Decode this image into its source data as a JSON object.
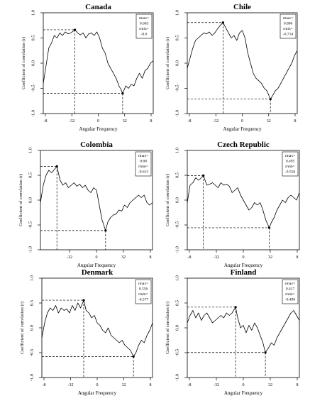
{
  "chart_data": [
    {
      "type": "line",
      "title": "Canada",
      "xlabel": "Angular Frequency",
      "ylabel": "Coefficient of correlation (r)",
      "x_tick_labels": [
        "-8",
        "-32",
        "0",
        "32",
        "8"
      ],
      "y_tick_labels": [
        "-1.0",
        "-0.5",
        "0.0",
        "0.5",
        "1.0"
      ],
      "xlim": [
        -8,
        8
      ],
      "ylim": [
        -1,
        1
      ],
      "legend": {
        "max_label": "rmax=",
        "max_value": "0.663",
        "min_label": "rmin=",
        "min_value": "-0.6"
      },
      "max_point": {
        "x": -3.4,
        "y": 0.663
      },
      "min_point": {
        "x": 3.55,
        "y": -0.6
      },
      "x": [
        -8.0,
        -7.6,
        -7.2,
        -6.8,
        -6.4,
        -6.0,
        -5.6,
        -5.2,
        -4.8,
        -4.4,
        -4.0,
        -3.6,
        -3.4,
        -3.0,
        -2.6,
        -2.2,
        -1.8,
        -1.4,
        -1.0,
        -0.6,
        -0.2,
        0.2,
        0.6,
        1.0,
        1.4,
        1.8,
        2.2,
        2.6,
        3.0,
        3.3,
        3.55,
        4.0,
        4.4,
        4.8,
        5.2,
        5.6,
        6.0,
        6.4,
        6.8,
        7.2,
        7.6,
        8.0
      ],
      "y": [
        -0.4,
        -0.05,
        0.3,
        0.4,
        0.55,
        0.5,
        0.6,
        0.55,
        0.62,
        0.58,
        0.6,
        0.64,
        0.663,
        0.6,
        0.56,
        0.6,
        0.5,
        0.58,
        0.6,
        0.55,
        0.62,
        0.5,
        0.3,
        0.2,
        0.0,
        -0.1,
        -0.2,
        -0.3,
        -0.45,
        -0.52,
        -0.6,
        -0.45,
        -0.5,
        -0.42,
        -0.45,
        -0.3,
        -0.2,
        -0.3,
        -0.15,
        -0.1,
        0.0,
        0.05
      ]
    },
    {
      "type": "line",
      "title": "Chile",
      "xlabel": "Angular Frequency",
      "ylabel": "Coefficient of correlation (r)",
      "x_tick_labels": [
        "-8",
        "-32",
        "0",
        "32",
        "8"
      ],
      "y_tick_labels": [
        "-1.0",
        "-0.5",
        "0.0",
        "0.5",
        "1.0"
      ],
      "xlim": [
        -8,
        8
      ],
      "ylim": [
        -1,
        1
      ],
      "legend": {
        "max_label": "rmax=",
        "max_value": "0.806",
        "min_label": "rmin=",
        "min_value": "-0.714"
      },
      "max_point": {
        "x": -2.8,
        "y": 0.806
      },
      "min_point": {
        "x": 4.1,
        "y": -0.714
      },
      "x": [
        -8.0,
        -7.6,
        -7.2,
        -6.8,
        -6.4,
        -6.0,
        -5.6,
        -5.2,
        -4.8,
        -4.4,
        -4.0,
        -3.6,
        -3.2,
        -2.8,
        -2.4,
        -2.0,
        -1.6,
        -1.2,
        -0.8,
        -0.4,
        0.0,
        0.4,
        0.8,
        1.2,
        1.6,
        2.0,
        2.4,
        2.8,
        3.2,
        3.6,
        4.1,
        4.4,
        4.8,
        5.2,
        5.6,
        6.0,
        6.4,
        6.8,
        7.2,
        7.6,
        8.0
      ],
      "y": [
        -0.1,
        0.1,
        0.3,
        0.45,
        0.5,
        0.55,
        0.6,
        0.58,
        0.62,
        0.55,
        0.6,
        0.68,
        0.75,
        0.806,
        0.7,
        0.6,
        0.5,
        0.55,
        0.45,
        0.6,
        0.65,
        0.5,
        0.2,
        0.0,
        -0.2,
        -0.3,
        -0.35,
        -0.4,
        -0.5,
        -0.55,
        -0.714,
        -0.65,
        -0.55,
        -0.5,
        -0.4,
        -0.3,
        -0.2,
        -0.1,
        0.0,
        0.15,
        0.25
      ]
    },
    {
      "type": "line",
      "title": "Colombia",
      "xlabel": "Angular Frequency",
      "ylabel": "Coefficient of correlation (r)",
      "x_tick_labels": [
        "-32",
        "0",
        "32",
        "8"
      ],
      "y_tick_labels": [
        "-1.0",
        "-0.5",
        "0.0",
        "0.5",
        "1.0"
      ],
      "xlim": [
        -8,
        8
      ],
      "ylim": [
        -1,
        1
      ],
      "legend": {
        "max_label": "rmax=",
        "max_value": "0.68",
        "min_label": "rmin=",
        "min_value": "-0.613"
      },
      "max_point": {
        "x": -5.65,
        "y": 0.68
      },
      "min_point": {
        "x": 1.3,
        "y": -0.613
      },
      "x": [
        -8.0,
        -7.6,
        -7.2,
        -6.8,
        -6.4,
        -6.0,
        -5.65,
        -5.2,
        -4.8,
        -4.4,
        -4.0,
        -3.6,
        -3.2,
        -2.8,
        -2.4,
        -2.0,
        -1.6,
        -1.2,
        -0.8,
        -0.4,
        0.0,
        0.4,
        0.8,
        1.3,
        1.6,
        2.0,
        2.4,
        2.8,
        3.2,
        3.6,
        4.0,
        4.4,
        4.8,
        5.2,
        5.6,
        6.0,
        6.4,
        6.8,
        7.2,
        7.6,
        8.0
      ],
      "y": [
        -0.05,
        0.3,
        0.5,
        0.6,
        0.55,
        0.62,
        0.68,
        0.4,
        0.3,
        0.35,
        0.25,
        0.3,
        0.35,
        0.28,
        0.32,
        0.25,
        0.3,
        0.2,
        0.15,
        0.25,
        0.2,
        -0.1,
        -0.4,
        -0.613,
        -0.45,
        -0.35,
        -0.3,
        -0.28,
        -0.2,
        -0.22,
        -0.1,
        -0.15,
        -0.05,
        0.0,
        0.05,
        0.1,
        0.05,
        0.1,
        -0.05,
        -0.1,
        -0.05
      ]
    },
    {
      "type": "line",
      "title": "Czech Republic",
      "xlabel": "Angular Frequency",
      "ylabel": "Coefficient of correlation (r)",
      "x_tick_labels": [
        "-8",
        "-32",
        "0",
        "32",
        "8"
      ],
      "y_tick_labels": [
        "-1.0",
        "-0.5",
        "0.0",
        "0.5",
        "1.0"
      ],
      "xlim": [
        -8,
        8
      ],
      "ylim": [
        -1,
        1
      ],
      "legend": {
        "max_label": "rmax=",
        "max_value": "0.495",
        "min_label": "rmin=",
        "min_value": "-0.556"
      },
      "max_point": {
        "x": -5.7,
        "y": 0.495
      },
      "min_point": {
        "x": 3.7,
        "y": -0.556
      },
      "x": [
        -8.0,
        -7.6,
        -7.2,
        -6.8,
        -6.4,
        -6.0,
        -5.7,
        -5.2,
        -4.8,
        -4.4,
        -4.0,
        -3.6,
        -3.2,
        -2.8,
        -2.4,
        -2.0,
        -1.6,
        -1.2,
        -0.8,
        -0.4,
        0.0,
        0.4,
        0.8,
        1.2,
        1.6,
        2.0,
        2.4,
        2.8,
        3.2,
        3.7,
        4.0,
        4.4,
        4.8,
        5.2,
        5.6,
        6.0,
        6.4,
        6.8,
        7.2,
        7.6,
        8.0
      ],
      "y": [
        -0.05,
        0.3,
        0.35,
        0.45,
        0.4,
        0.45,
        0.495,
        0.3,
        0.32,
        0.35,
        0.3,
        0.25,
        0.35,
        0.3,
        0.32,
        0.28,
        0.15,
        0.2,
        0.25,
        0.1,
        0.0,
        -0.1,
        -0.2,
        -0.15,
        -0.05,
        -0.1,
        -0.05,
        -0.2,
        -0.4,
        -0.556,
        -0.45,
        -0.35,
        -0.2,
        -0.1,
        0.0,
        -0.05,
        0.05,
        0.1,
        0.05,
        0.0,
        0.15
      ]
    },
    {
      "type": "line",
      "title": "Denmark",
      "xlabel": "Angular Frequency",
      "ylabel": "Coefficient of correlation (r)",
      "x_tick_labels": [
        "-8",
        "-32",
        "0",
        "32",
        "8"
      ],
      "y_tick_labels": [
        "-1.0",
        "-0.5",
        "0.0",
        "0.5",
        "1.0"
      ],
      "xlim": [
        -8,
        8
      ],
      "ylim": [
        -1,
        1
      ],
      "legend": {
        "max_label": "rmax=",
        "max_value": "0.556",
        "min_label": "rmin=",
        "min_value": "-0.577"
      },
      "max_point": {
        "x": -1.95,
        "y": 0.556
      },
      "min_point": {
        "x": 5.25,
        "y": -0.577
      },
      "x": [
        -8.0,
        -7.6,
        -7.2,
        -6.8,
        -6.4,
        -6.0,
        -5.6,
        -5.2,
        -4.8,
        -4.4,
        -4.0,
        -3.6,
        -3.2,
        -2.8,
        -2.4,
        -1.95,
        -1.6,
        -1.2,
        -0.8,
        -0.4,
        0.0,
        0.4,
        0.8,
        1.2,
        1.6,
        2.0,
        2.4,
        2.8,
        3.2,
        3.6,
        4.0,
        4.4,
        4.8,
        5.25,
        5.6,
        6.0,
        6.4,
        6.8,
        7.2,
        7.6,
        8.0
      ],
      "y": [
        -0.2,
        0.1,
        0.3,
        0.4,
        0.35,
        0.45,
        0.3,
        0.4,
        0.35,
        0.38,
        0.3,
        0.45,
        0.35,
        0.5,
        0.4,
        0.556,
        0.35,
        0.3,
        0.2,
        0.25,
        0.1,
        0.05,
        -0.05,
        -0.1,
        0.0,
        -0.15,
        -0.2,
        -0.25,
        -0.3,
        -0.25,
        -0.35,
        -0.4,
        -0.45,
        -0.577,
        -0.5,
        -0.35,
        -0.25,
        -0.3,
        -0.15,
        -0.05,
        0.1
      ]
    },
    {
      "type": "line",
      "title": "Finland",
      "xlabel": "Angular Frequency",
      "ylabel": "Coefficient of correlation (r)",
      "x_tick_labels": [
        "-8",
        "-32",
        "0",
        "32",
        "8"
      ],
      "y_tick_labels": [
        "-1.0",
        "-0.5",
        "0.0",
        "0.5",
        "1.0"
      ],
      "xlim": [
        -8,
        8
      ],
      "ylim": [
        -1,
        1
      ],
      "legend": {
        "max_label": "rmax=",
        "max_value": "0.417",
        "min_label": "rmin=",
        "min_value": "-0.496"
      },
      "max_point": {
        "x": -1.1,
        "y": 0.417
      },
      "min_point": {
        "x": 3.15,
        "y": -0.496
      },
      "x": [
        -8.0,
        -7.6,
        -7.2,
        -6.8,
        -6.4,
        -6.0,
        -5.6,
        -5.2,
        -4.8,
        -4.4,
        -4.0,
        -3.6,
        -3.2,
        -2.8,
        -2.4,
        -2.0,
        -1.6,
        -1.1,
        -0.8,
        -0.4,
        0.0,
        0.4,
        0.8,
        1.2,
        1.6,
        2.0,
        2.4,
        2.8,
        3.15,
        3.6,
        4.0,
        4.4,
        4.8,
        5.2,
        5.6,
        6.0,
        6.4,
        6.8,
        7.2,
        7.6,
        8.0
      ],
      "y": [
        0.1,
        0.25,
        0.35,
        0.2,
        0.3,
        0.15,
        0.25,
        0.3,
        0.2,
        0.1,
        0.15,
        0.2,
        0.25,
        0.2,
        0.3,
        0.25,
        0.3,
        0.417,
        0.2,
        0.0,
        0.05,
        -0.1,
        0.05,
        -0.05,
        0.1,
        0.0,
        -0.15,
        -0.3,
        -0.496,
        -0.4,
        -0.3,
        -0.35,
        -0.2,
        -0.1,
        0.0,
        0.1,
        0.2,
        0.3,
        0.35,
        0.25,
        0.15
      ]
    }
  ]
}
